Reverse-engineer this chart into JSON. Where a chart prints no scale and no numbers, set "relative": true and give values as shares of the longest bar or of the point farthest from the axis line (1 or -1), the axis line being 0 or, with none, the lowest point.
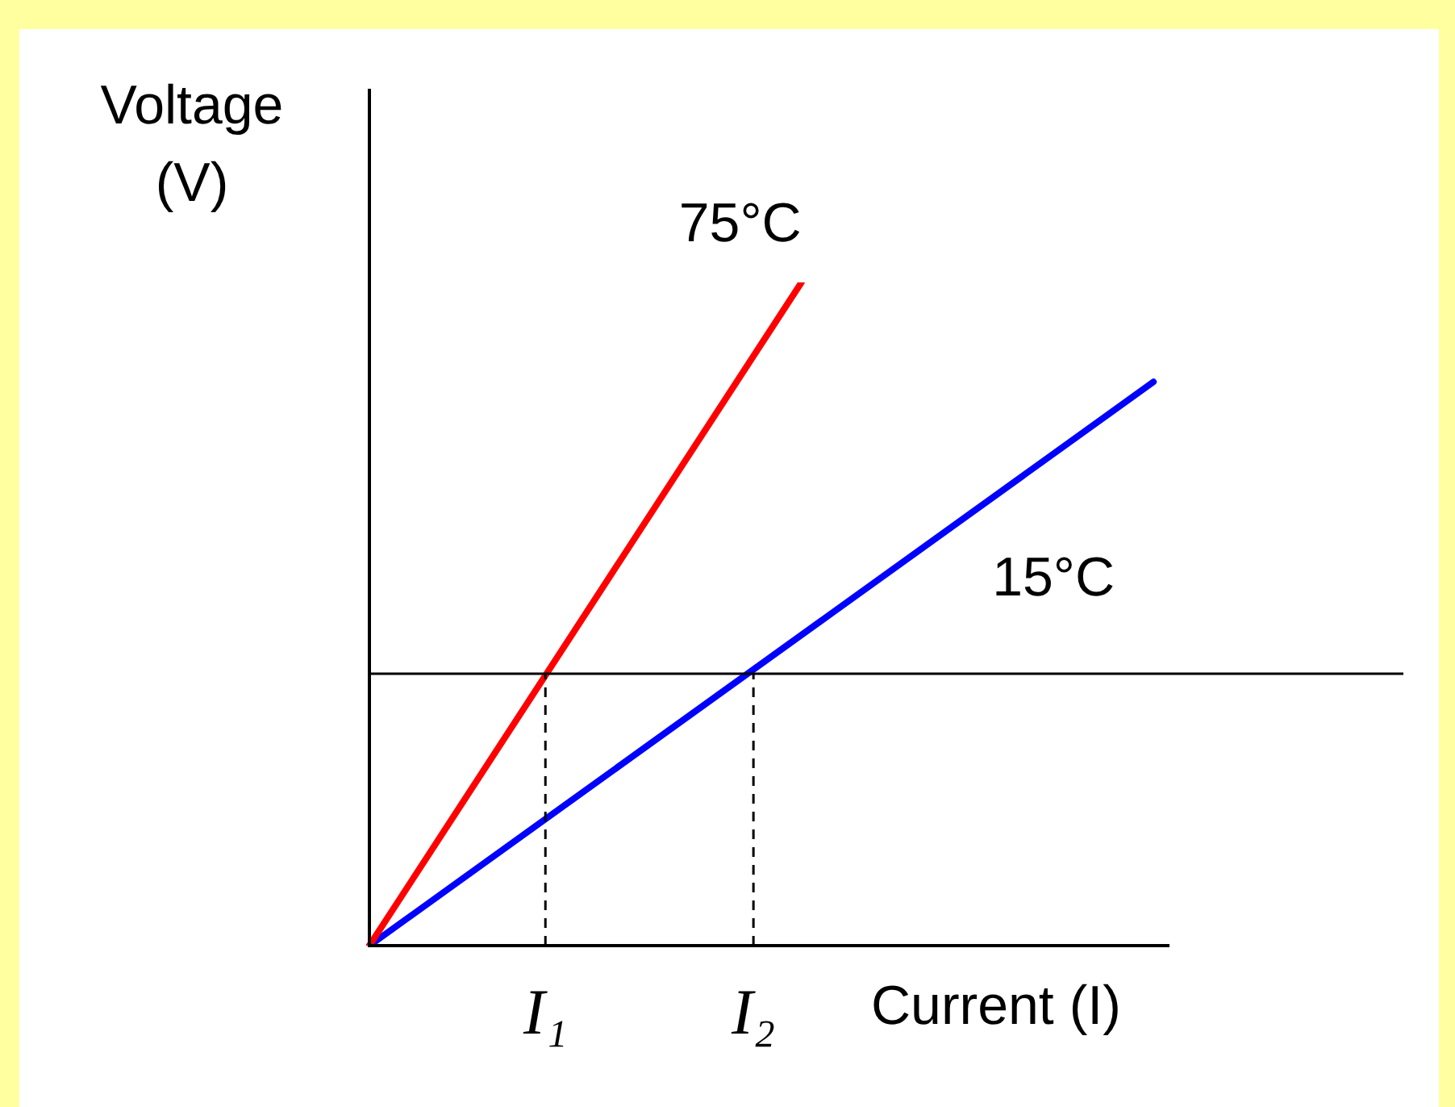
{
  "chart_data": {
    "type": "line",
    "relative": true,
    "xlabel": "Current (I)",
    "ylabel": "Voltage (V)",
    "legend": false,
    "marker": "none",
    "line_style": "solid",
    "categories": [
      null,
      null,
      null,
      null,
      null,
      null,
      null,
      null,
      null,
      null,
      null,
      "I₁",
      null,
      null,
      null,
      null,
      null,
      null,
      null,
      null,
      null,
      null,
      null,
      null,
      "I₂",
      null,
      null,
      null,
      null,
      null,
      null,
      null,
      null,
      null,
      null,
      null,
      null,
      null,
      null,
      null,
      null,
      null,
      null,
      null,
      null,
      null,
      null,
      null,
      null,
      null,
      null
    ],
    "series": [
      {
        "name": "75°C",
        "color": "#ff0000",
        "values": [
          0,
          null,
          null,
          null,
          null,
          null,
          null,
          null,
          null,
          null,
          null,
          null,
          null,
          null,
          null,
          null,
          null,
          null,
          null,
          null,
          null,
          null,
          null,
          null,
          null,
          null,
          null,
          1,
          null,
          null,
          null,
          null,
          null,
          null,
          null,
          null,
          null,
          null,
          null,
          null,
          null,
          null,
          null,
          null,
          null,
          null,
          null,
          null,
          null,
          null,
          null
        ]
      },
      {
        "name": "15°C",
        "color": "#0000ff",
        "values": [
          0,
          null,
          null,
          null,
          null,
          null,
          null,
          null,
          null,
          null,
          null,
          null,
          null,
          null,
          null,
          null,
          null,
          null,
          null,
          null,
          null,
          null,
          null,
          null,
          null,
          null,
          null,
          null,
          null,
          null,
          null,
          null,
          null,
          null,
          null,
          null,
          null,
          null,
          null,
          null,
          null,
          null,
          null,
          null,
          null,
          null,
          null,
          null,
          null,
          0.85,
          null
        ]
      }
    ],
    "ref_lines": [
      {
        "axis": "y",
        "value": 0.41,
        "color": "#000000",
        "line_style": "solid"
      },
      {
        "axis": "x",
        "value": "I₁",
        "color": "#000000",
        "line_style": "dashed"
      },
      {
        "axis": "x",
        "value": "I₂",
        "color": "#000000",
        "line_style": "dashed"
      }
    ]
  }
}
